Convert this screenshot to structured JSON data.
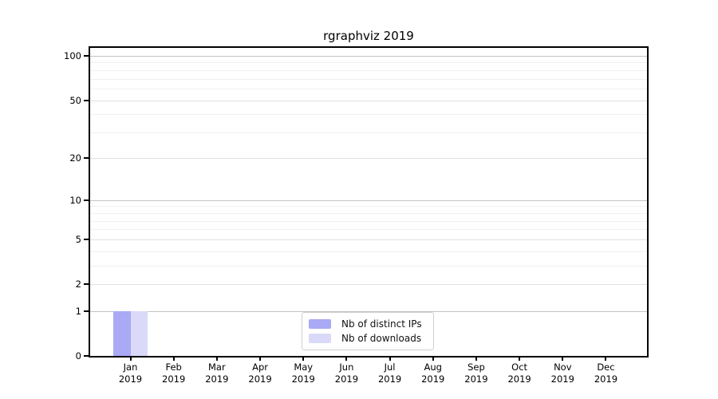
{
  "chart_data": {
    "type": "bar",
    "title": "rgraphviz 2019",
    "x_year": "2019",
    "categories": [
      "Jan",
      "Feb",
      "Mar",
      "Apr",
      "May",
      "Jun",
      "Jul",
      "Aug",
      "Sep",
      "Oct",
      "Nov",
      "Dec"
    ],
    "series": [
      {
        "name": "Nb of distinct IPs",
        "color": "#a9a9f5",
        "values": [
          1,
          0,
          0,
          0,
          0,
          0,
          0,
          0,
          0,
          0,
          0,
          0
        ]
      },
      {
        "name": "Nb of downloads",
        "color": "#dadaf8",
        "values": [
          1,
          0,
          0,
          0,
          0,
          0,
          0,
          0,
          0,
          0,
          0,
          0
        ]
      }
    ],
    "y_scale": "log10(1+x)",
    "y_ticks": [
      0,
      1,
      2,
      5,
      10,
      20,
      50,
      100
    ],
    "y_decade_ticks": [
      1,
      10,
      100
    ],
    "y_minor_gridlines": [
      3,
      4,
      6,
      7,
      8,
      9,
      30,
      40,
      60,
      70,
      80,
      90
    ],
    "ylim": [
      0,
      110
    ],
    "grid": "horizontal",
    "legend_position": "inside-bottom-center",
    "colors": {
      "bar_distinct_ips": "#a9a9f5",
      "bar_downloads": "#dadaf8",
      "grid_minor": "#f0f0f0",
      "grid_major": "#e1e1e1",
      "grid_decade": "#c3c3c3",
      "axis": "#000000",
      "legend_border": "#d0d0d0"
    }
  }
}
